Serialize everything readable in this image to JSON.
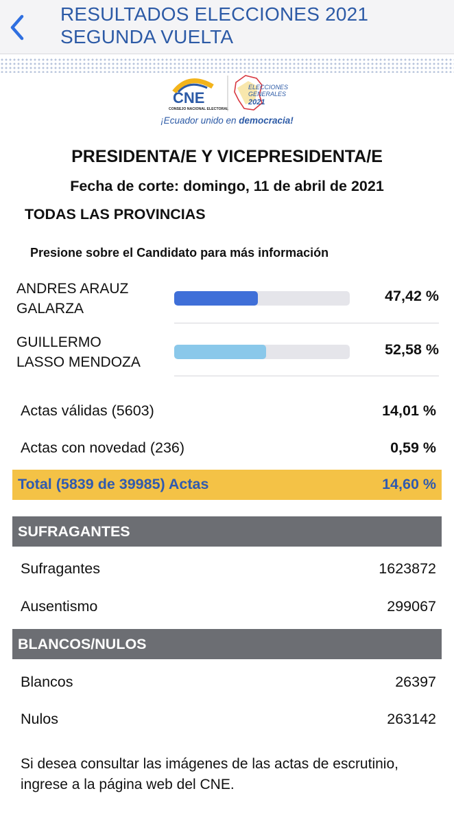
{
  "nav": {
    "title_line1": "RESULTADOS ELECCIONES 2021",
    "title_line2": "SEGUNDA VUELTA",
    "back_icon": "chevron-left-icon"
  },
  "logo": {
    "cne_text": "CNE",
    "cne_subtitle": "CONSEJO NACIONAL ELECTORAL",
    "elecciones_line1": "ELECCIONES",
    "elecciones_line2": "GENERALES",
    "elecciones_year": "2021",
    "slogan_prefix": "¡Ecuador unido en ",
    "slogan_bold": "democracia!"
  },
  "header": {
    "title": "PRESIDENTA/E Y VICEPRESIDENTA/E",
    "date": "Fecha de corte: domingo, 11 de abril de 2021",
    "scope": "TODAS LAS PROVINCIAS",
    "hint": "Presione sobre el Candidato para más información"
  },
  "candidates": [
    {
      "name_line1": "ANDRES ARAUZ",
      "name_line2": "GALARZA",
      "percent": "47,42 %",
      "bar_fraction": 0.475,
      "color": "#3f6fd8"
    },
    {
      "name_line1": "GUILLERMO",
      "name_line2": "LASSO MENDOZA",
      "percent": "52,58 %",
      "bar_fraction": 0.525,
      "color": "#8ac8ea"
    }
  ],
  "actas": {
    "validas_label": "Actas válidas (5603)",
    "validas_value": "14,01 %",
    "novedad_label": "Actas con novedad (236)",
    "novedad_value": "0,59 %",
    "total_label": "Total (5839 de 39985) Actas",
    "total_value": "14,60 %",
    "total_color": "#f4c246"
  },
  "sufragantes": {
    "heading": "SUFRAGANTES",
    "rows": [
      {
        "label": "Sufragantes",
        "value": "1623872"
      },
      {
        "label": "Ausentismo",
        "value": "299067"
      }
    ]
  },
  "blancos_nulos": {
    "heading": "BLANCOS/NULOS",
    "rows": [
      {
        "label": "Blancos",
        "value": "26397"
      },
      {
        "label": "Nulos",
        "value": "263142"
      }
    ]
  },
  "footer": {
    "text": "Si desea consultar las imágenes de las actas de escrutinio, ingrese a la página web del CNE."
  }
}
